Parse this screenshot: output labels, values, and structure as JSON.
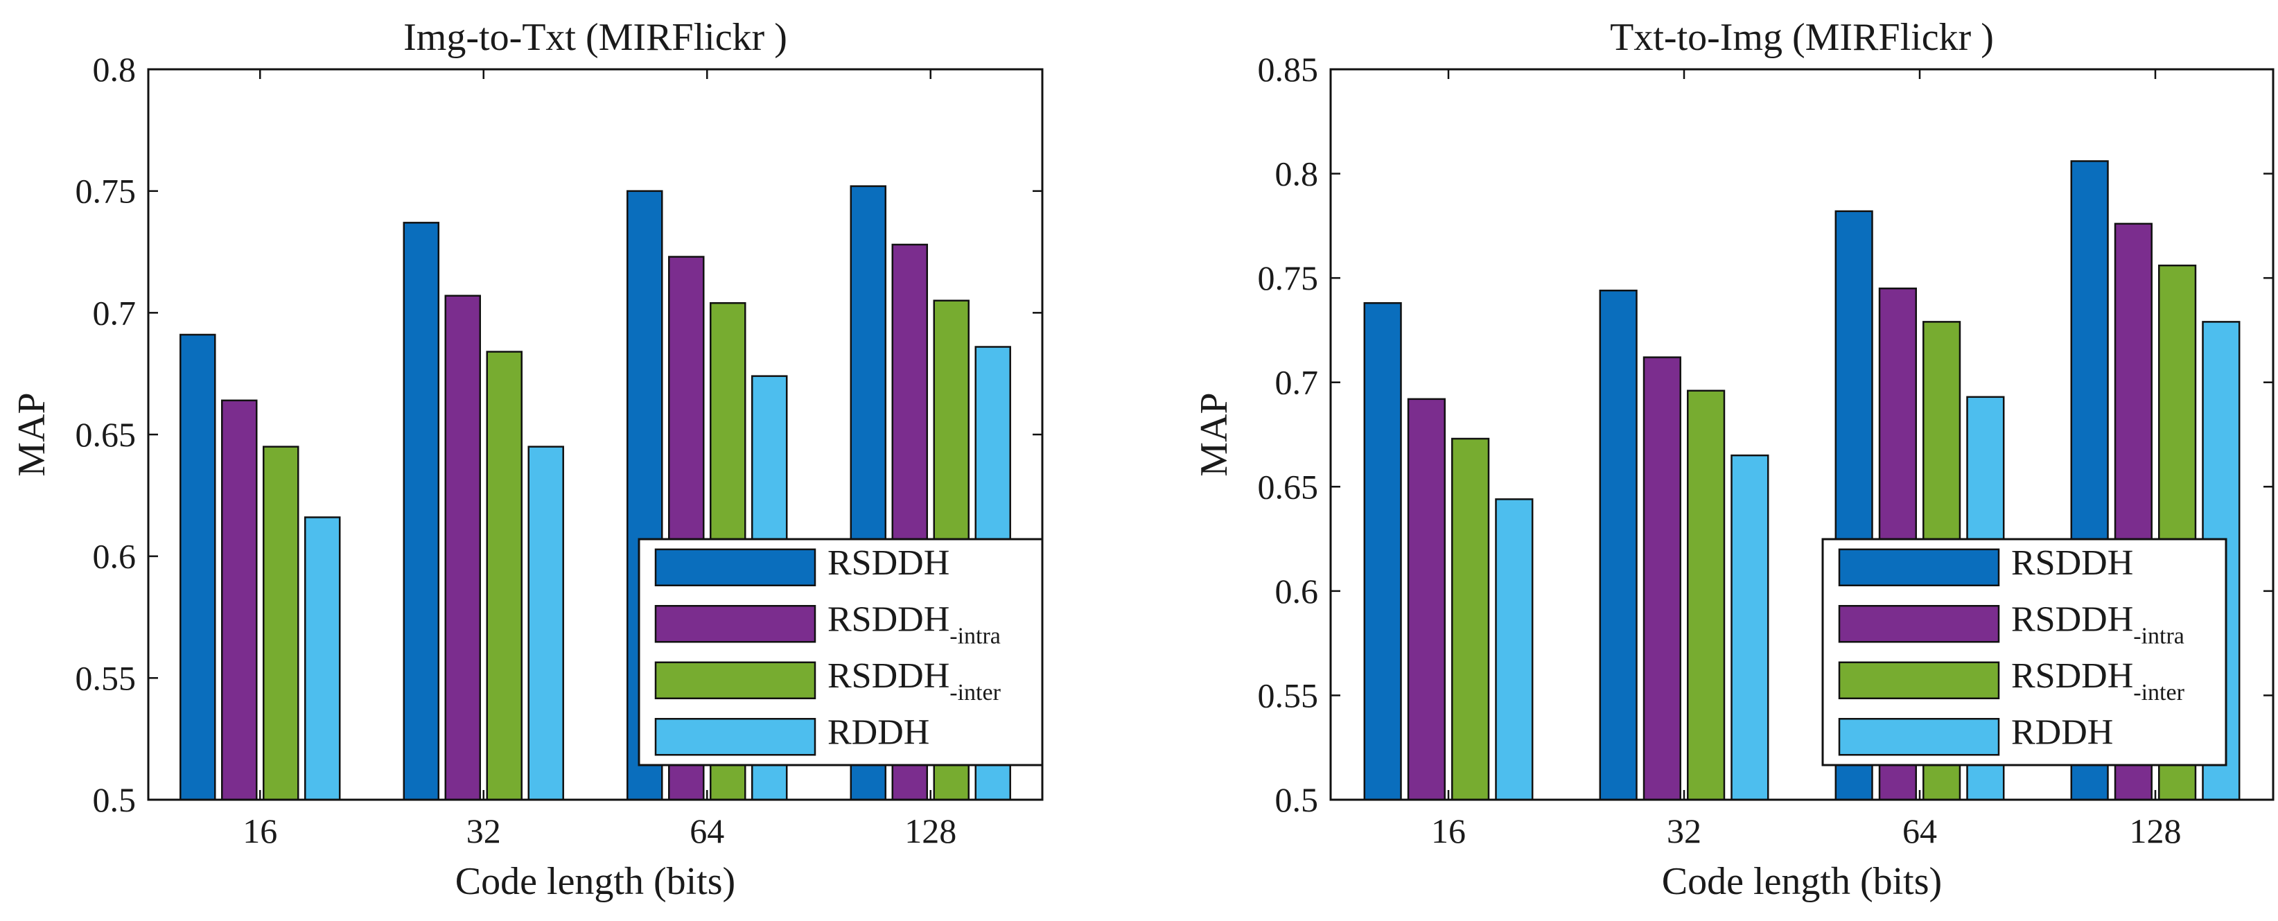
{
  "chart_data": [
    {
      "type": "bar",
      "title": "Img-to-Txt (MIRFlickr )",
      "xlabel": "Code length (bits)",
      "ylabel": "MAP",
      "categories": [
        "16",
        "32",
        "64",
        "128"
      ],
      "ylim": [
        0.5,
        0.8
      ],
      "yticks": [
        "0.5",
        "0.55",
        "0.6",
        "0.65",
        "0.7",
        "0.75",
        "0.8"
      ],
      "legend_position": "bottom-right",
      "series": [
        {
          "name": "RSDDH",
          "name_sub": "",
          "color": "#0A6EBD",
          "values": [
            0.691,
            0.737,
            0.75,
            0.752
          ]
        },
        {
          "name": "RSDDH",
          "name_sub": "-intra",
          "color": "#7B2D8E",
          "values": [
            0.664,
            0.707,
            0.723,
            0.728
          ]
        },
        {
          "name": "RSDDH",
          "name_sub": "-inter",
          "color": "#77AC30",
          "values": [
            0.645,
            0.684,
            0.704,
            0.705
          ]
        },
        {
          "name": "RDDH",
          "name_sub": "",
          "color": "#4DBEEE",
          "values": [
            0.616,
            0.645,
            0.674,
            0.686
          ]
        }
      ]
    },
    {
      "type": "bar",
      "title": "Txt-to-Img (MIRFlickr )",
      "xlabel": "Code length (bits)",
      "ylabel": "MAP",
      "categories": [
        "16",
        "32",
        "64",
        "128"
      ],
      "ylim": [
        0.5,
        0.85
      ],
      "yticks": [
        "0.5",
        "0.55",
        "0.6",
        "0.65",
        "0.7",
        "0.75",
        "0.8",
        "0.85"
      ],
      "legend_position": "bottom-right",
      "series": [
        {
          "name": "RSDDH",
          "name_sub": "",
          "color": "#0A6EBD",
          "values": [
            0.738,
            0.744,
            0.782,
            0.806
          ]
        },
        {
          "name": "RSDDH",
          "name_sub": "-intra",
          "color": "#7B2D8E",
          "values": [
            0.692,
            0.712,
            0.745,
            0.776
          ]
        },
        {
          "name": "RSDDH",
          "name_sub": "-inter",
          "color": "#77AC30",
          "values": [
            0.673,
            0.696,
            0.729,
            0.756
          ]
        },
        {
          "name": "RDDH",
          "name_sub": "",
          "color": "#4DBEEE",
          "values": [
            0.644,
            0.665,
            0.693,
            0.729
          ]
        }
      ]
    }
  ]
}
